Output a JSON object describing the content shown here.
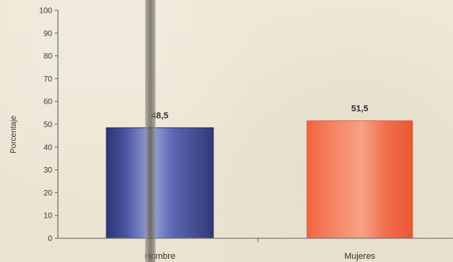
{
  "chart_data": {
    "type": "bar",
    "categories": [
      "Hombre",
      "Mujeres"
    ],
    "values": [
      48.5,
      51.5
    ],
    "value_labels": [
      "48,5",
      "51,5"
    ],
    "title": "",
    "xlabel": "",
    "ylabel": "Porcentaje",
    "ylim": [
      0,
      100
    ],
    "yticks": [
      0,
      10,
      20,
      30,
      40,
      50,
      60,
      70,
      80,
      90,
      100
    ],
    "ytick_labels": [
      "0",
      "10",
      "20",
      "30",
      "40",
      "50",
      "60",
      "70",
      "80",
      "90",
      "100"
    ],
    "grid": false,
    "legend": "none",
    "colors": [
      "#4f58a3",
      "#f06d4b"
    ]
  }
}
